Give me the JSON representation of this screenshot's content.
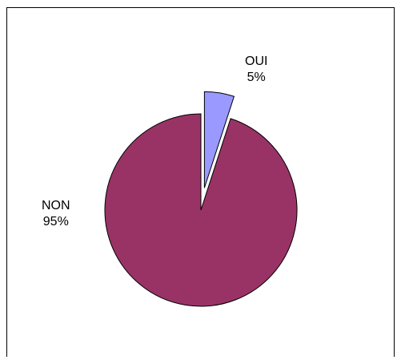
{
  "chart_data": {
    "type": "pie",
    "title": "",
    "slices": [
      {
        "label": "OUI",
        "value": 5,
        "percent_label": "5%",
        "color": "#9999ff",
        "exploded": true
      },
      {
        "label": "NON",
        "value": 95,
        "percent_label": "95%",
        "color": "#993366",
        "exploded": false
      }
    ],
    "legend": "none",
    "border_color": "#000000"
  }
}
